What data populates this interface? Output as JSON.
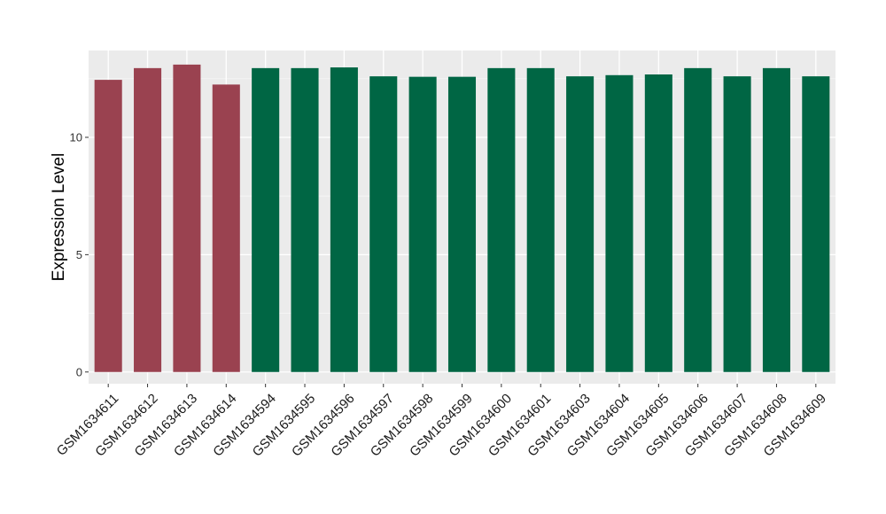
{
  "chart_data": {
    "type": "bar",
    "title": "",
    "xlabel": "",
    "ylabel": "Expression Level",
    "ylim": [
      -0.5,
      13.7
    ],
    "yticks": [
      0,
      5,
      10
    ],
    "grid": true,
    "legend": "none",
    "categories": [
      "GSM1634611",
      "GSM1634612",
      "GSM1634613",
      "GSM1634614",
      "GSM1634594",
      "GSM1634595",
      "GSM1634596",
      "GSM1634597",
      "GSM1634598",
      "GSM1634599",
      "GSM1634600",
      "GSM1634601",
      "GSM1634603",
      "GSM1634604",
      "GSM1634605",
      "GSM1634606",
      "GSM1634607",
      "GSM1634608",
      "GSM1634609"
    ],
    "values": [
      12.45,
      12.95,
      13.1,
      12.25,
      12.95,
      12.95,
      12.98,
      12.6,
      12.58,
      12.58,
      12.95,
      12.95,
      12.6,
      12.65,
      12.68,
      12.95,
      12.6,
      12.95,
      12.6
    ],
    "groups": [
      0,
      0,
      0,
      0,
      1,
      1,
      1,
      1,
      1,
      1,
      1,
      1,
      1,
      1,
      1,
      1,
      1,
      1,
      1
    ],
    "group_colors": [
      "#9a4250",
      "#006644"
    ]
  },
  "colors": {
    "panel_background": "#ebebeb",
    "grid_major": "#ffffff",
    "grid_minor": "#f5f5f5"
  }
}
